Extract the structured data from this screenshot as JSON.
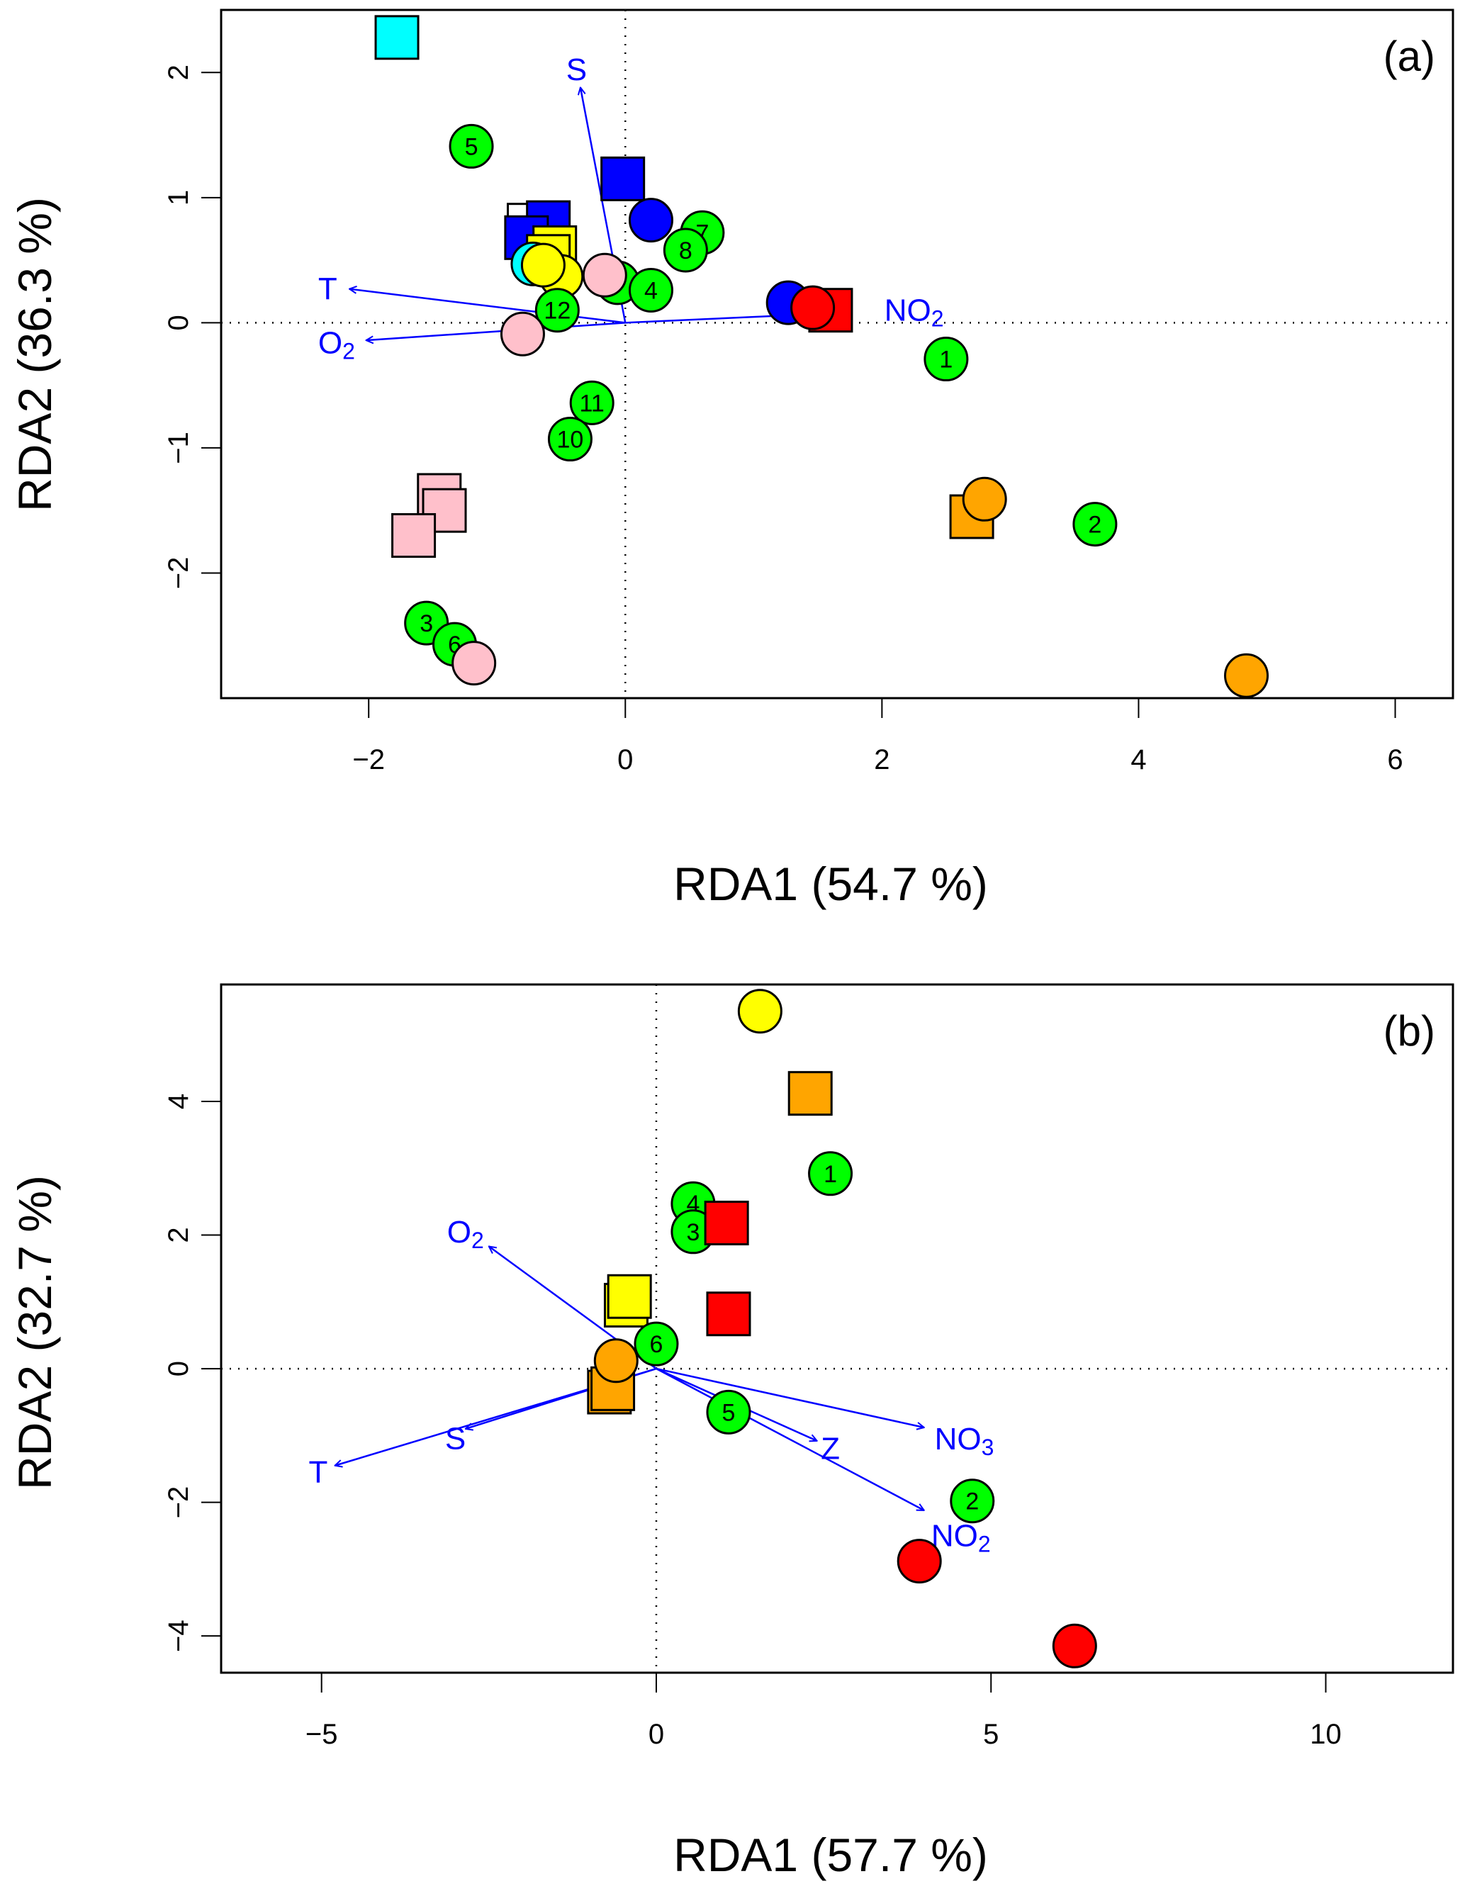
{
  "chart_data": [
    {
      "type": "scatter",
      "panel_label": "(a)",
      "title": "",
      "xlabel": "RDA1 (54.7 %)",
      "ylabel": "RDA2 (36.3 %)",
      "xlim": [
        -3.15,
        6.45
      ],
      "ylim": [
        -3.0,
        2.5
      ],
      "xticks": [
        -2,
        0,
        2,
        4,
        6
      ],
      "yticks": [
        -2,
        -1,
        0,
        1,
        2
      ],
      "reference_lines": {
        "x": 0,
        "y": 0,
        "style": "dotted"
      },
      "vectors": [
        {
          "name": "S",
          "x": -0.35,
          "y": 1.88,
          "label_x": -0.38,
          "label_y": 2.02
        },
        {
          "name": "T",
          "x": -2.15,
          "y": 0.27,
          "label_x": -2.32,
          "label_y": 0.27
        },
        {
          "name": "O2",
          "x": -2.02,
          "y": -0.14,
          "label_x": -2.25,
          "label_y": -0.16
        },
        {
          "name": "NO2",
          "x": 1.72,
          "y": 0.08,
          "label_x": 2.25,
          "label_y": 0.1
        }
      ],
      "points": [
        {
          "shape": "square",
          "color": "#00ffff",
          "x": -1.78,
          "y": 2.28,
          "label": ""
        },
        {
          "shape": "circle",
          "color": "#00ff00",
          "x": -1.2,
          "y": 1.41,
          "label": "5"
        },
        {
          "shape": "square",
          "color": "#0000ff",
          "x": -0.02,
          "y": 1.15,
          "label": ""
        },
        {
          "shape": "square",
          "color": "#ffffff",
          "x": -0.75,
          "y": 0.78,
          "label": ""
        },
        {
          "shape": "square",
          "color": "#0000ff",
          "x": -0.6,
          "y": 0.8,
          "label": ""
        },
        {
          "shape": "square",
          "color": "#0000ff",
          "x": -0.77,
          "y": 0.68,
          "label": ""
        },
        {
          "shape": "square",
          "color": "#ffff00",
          "x": -0.55,
          "y": 0.6,
          "label": ""
        },
        {
          "shape": "square",
          "color": "#ffff00",
          "x": -0.6,
          "y": 0.53,
          "label": ""
        },
        {
          "shape": "circle",
          "color": "#00ffff",
          "x": -0.72,
          "y": 0.47,
          "label": ""
        },
        {
          "shape": "circle",
          "color": "#ffff00",
          "x": -0.5,
          "y": 0.37,
          "label": ""
        },
        {
          "shape": "circle",
          "color": "#ffff00",
          "x": -0.64,
          "y": 0.46,
          "label": ""
        },
        {
          "shape": "circle",
          "color": "#0000ff",
          "x": 0.2,
          "y": 0.82,
          "label": ""
        },
        {
          "shape": "circle",
          "color": "#00ff00",
          "x": 0.6,
          "y": 0.72,
          "label": "7"
        },
        {
          "shape": "circle",
          "color": "#00ff00",
          "x": 0.47,
          "y": 0.58,
          "label": "8"
        },
        {
          "shape": "circle",
          "color": "#00ff00",
          "x": -0.06,
          "y": 0.32,
          "label": "9"
        },
        {
          "shape": "circle",
          "color": "#00ff00",
          "x": 0.2,
          "y": 0.26,
          "label": "4"
        },
        {
          "shape": "circle",
          "color": "#ffc0cb",
          "x": -0.16,
          "y": 0.38,
          "label": ""
        },
        {
          "shape": "circle",
          "color": "#00ff00",
          "x": -0.53,
          "y": 0.1,
          "label": "12"
        },
        {
          "shape": "circle",
          "color": "#ffc0cb",
          "x": -0.8,
          "y": -0.09,
          "label": ""
        },
        {
          "shape": "circle",
          "color": "#0000ff",
          "x": 1.27,
          "y": 0.16,
          "label": ""
        },
        {
          "shape": "square",
          "color": "#ff0000",
          "x": 1.6,
          "y": 0.1,
          "label": ""
        },
        {
          "shape": "circle",
          "color": "#ff0000",
          "x": 1.46,
          "y": 0.12,
          "label": ""
        },
        {
          "shape": "circle",
          "color": "#00ff00",
          "x": 2.5,
          "y": -0.29,
          "label": "1"
        },
        {
          "shape": "circle",
          "color": "#00ff00",
          "x": -0.26,
          "y": -0.64,
          "label": "11"
        },
        {
          "shape": "circle",
          "color": "#00ff00",
          "x": -0.43,
          "y": -0.93,
          "label": "10"
        },
        {
          "shape": "square",
          "color": "#ffc0cb",
          "x": -1.45,
          "y": -1.38,
          "label": ""
        },
        {
          "shape": "square",
          "color": "#ffc0cb",
          "x": -1.41,
          "y": -1.5,
          "label": ""
        },
        {
          "shape": "square",
          "color": "#ffc0cb",
          "x": -1.65,
          "y": -1.7,
          "label": ""
        },
        {
          "shape": "square",
          "color": "#ffa500",
          "x": 2.7,
          "y": -1.55,
          "label": ""
        },
        {
          "shape": "circle",
          "color": "#ffa500",
          "x": 2.8,
          "y": -1.41,
          "label": ""
        },
        {
          "shape": "circle",
          "color": "#00ff00",
          "x": 3.66,
          "y": -1.61,
          "label": "2"
        },
        {
          "shape": "circle",
          "color": "#00ff00",
          "x": -1.55,
          "y": -2.4,
          "label": "3"
        },
        {
          "shape": "circle",
          "color": "#00ff00",
          "x": -1.33,
          "y": -2.57,
          "label": "6"
        },
        {
          "shape": "circle",
          "color": "#ffc0cb",
          "x": -1.18,
          "y": -2.72,
          "label": ""
        },
        {
          "shape": "circle",
          "color": "#ffa500",
          "x": 4.84,
          "y": -2.82,
          "label": ""
        }
      ]
    },
    {
      "type": "scatter",
      "panel_label": "(b)",
      "title": "",
      "xlabel": "RDA1 (57.7 %)",
      "ylabel": "RDA2 (32.7 %)",
      "xlim": [
        -6.5,
        11.9
      ],
      "ylim": [
        -4.55,
        5.75
      ],
      "xticks": [
        -5,
        0,
        5,
        10
      ],
      "yticks": [
        -4,
        -2,
        0,
        2,
        4
      ],
      "reference_lines": {
        "x": 0,
        "y": 0,
        "style": "dotted"
      },
      "vectors": [
        {
          "name": "O2",
          "x": -2.5,
          "y": 1.83,
          "label_x": -2.85,
          "label_y": 2.05
        },
        {
          "name": "S",
          "x": -2.85,
          "y": -0.9,
          "label_x": -3.0,
          "label_y": -1.05
        },
        {
          "name": "T",
          "x": -4.8,
          "y": -1.45,
          "label_x": -5.05,
          "label_y": -1.55
        },
        {
          "name": "Z",
          "x": 2.4,
          "y": -1.08,
          "label_x": 2.6,
          "label_y": -1.2
        },
        {
          "name": "NO3",
          "x": 4.0,
          "y": -0.88,
          "label_x": 4.6,
          "label_y": -1.05
        },
        {
          "name": "NO2",
          "x": 4.0,
          "y": -2.12,
          "label_x": 4.55,
          "label_y": -2.5
        }
      ],
      "points": [
        {
          "shape": "circle",
          "color": "#ffff00",
          "x": 1.55,
          "y": 5.35,
          "label": ""
        },
        {
          "shape": "square",
          "color": "#ffa500",
          "x": 2.3,
          "y": 4.12,
          "label": ""
        },
        {
          "shape": "circle",
          "color": "#00ff00",
          "x": 2.6,
          "y": 2.92,
          "label": "1"
        },
        {
          "shape": "circle",
          "color": "#00ff00",
          "x": 0.55,
          "y": 2.47,
          "label": "4"
        },
        {
          "shape": "circle",
          "color": "#00ff00",
          "x": 0.55,
          "y": 2.05,
          "label": "3"
        },
        {
          "shape": "square",
          "color": "#ff0000",
          "x": 1.05,
          "y": 2.18,
          "label": ""
        },
        {
          "shape": "square",
          "color": "#ff0000",
          "x": 1.08,
          "y": 0.82,
          "label": ""
        },
        {
          "shape": "square",
          "color": "#ffff00",
          "x": -0.45,
          "y": 0.95,
          "label": ""
        },
        {
          "shape": "square",
          "color": "#ffff00",
          "x": -0.4,
          "y": 1.08,
          "label": ""
        },
        {
          "shape": "circle",
          "color": "#00ff00",
          "x": 0.0,
          "y": 0.37,
          "label": "6"
        },
        {
          "shape": "square",
          "color": "#ffa500",
          "x": -0.7,
          "y": -0.35,
          "label": ""
        },
        {
          "shape": "square",
          "color": "#ffa500",
          "x": -0.65,
          "y": -0.3,
          "label": ""
        },
        {
          "shape": "circle",
          "color": "#ffa500",
          "x": -0.6,
          "y": 0.12,
          "label": ""
        },
        {
          "shape": "circle",
          "color": "#00ff00",
          "x": 1.08,
          "y": -0.65,
          "label": "5"
        },
        {
          "shape": "circle",
          "color": "#00ff00",
          "x": 4.72,
          "y": -1.98,
          "label": "2"
        },
        {
          "shape": "circle",
          "color": "#ff0000",
          "x": 3.93,
          "y": -2.88,
          "label": ""
        },
        {
          "shape": "circle",
          "color": "#ff0000",
          "x": 6.25,
          "y": -4.15,
          "label": ""
        }
      ]
    }
  ]
}
